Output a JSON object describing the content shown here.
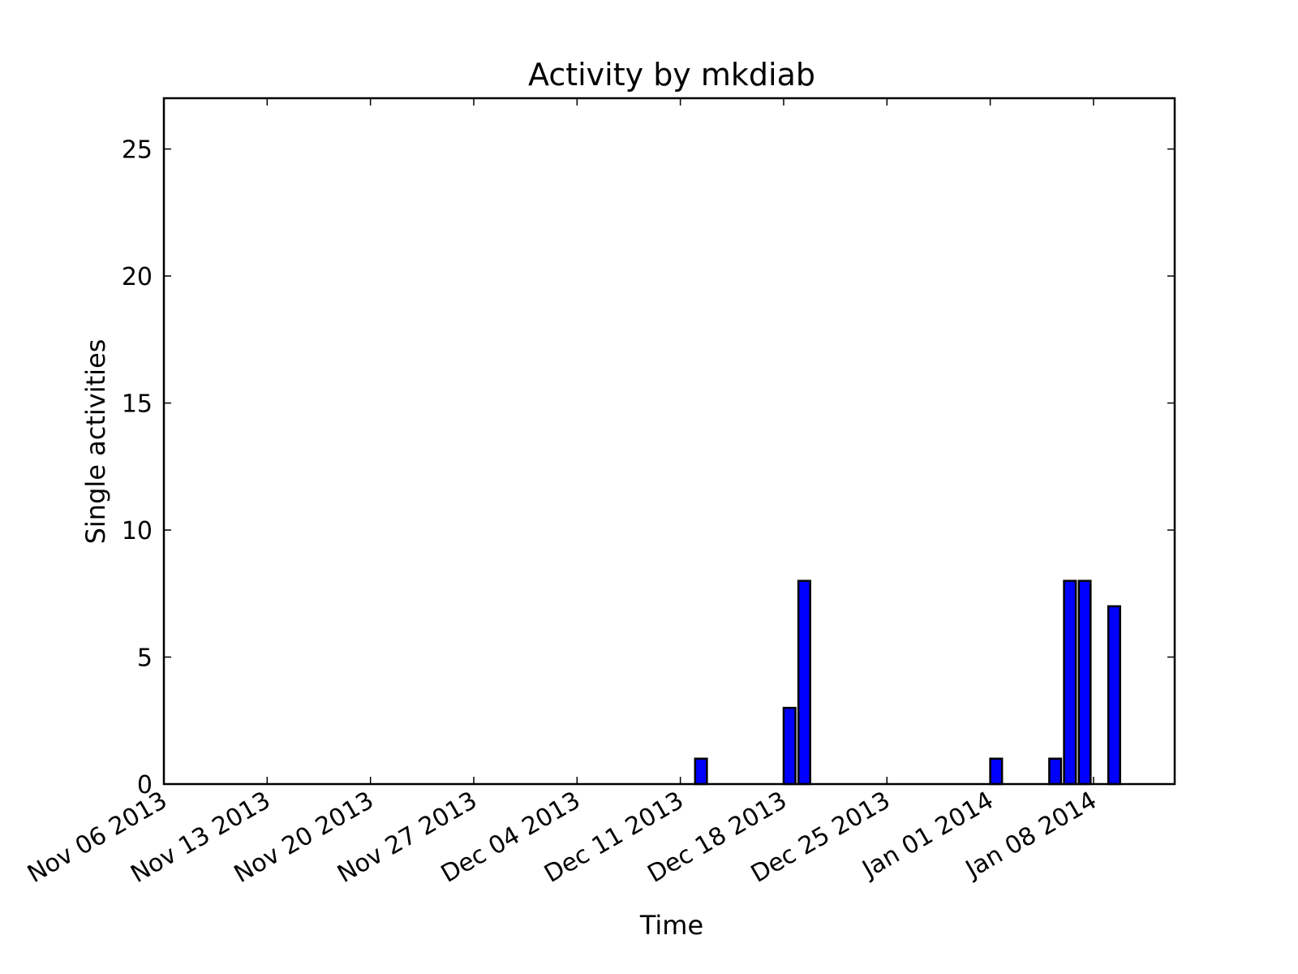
{
  "chart_data": {
    "type": "bar",
    "title": "Activity by mkdiab",
    "xlabel": "Time",
    "ylabel": "Single activities",
    "x_ticks": [
      "Nov 06 2013",
      "Nov 13 2013",
      "Nov 20 2013",
      "Nov 27 2013",
      "Dec 04 2013",
      "Dec 11 2013",
      "Dec 18 2013",
      "Dec 25 2013",
      "Jan 01 2014",
      "Jan 08 2014"
    ],
    "x_tick_dates": [
      "2013-11-06",
      "2013-11-13",
      "2013-11-20",
      "2013-11-27",
      "2013-12-04",
      "2013-12-11",
      "2013-12-18",
      "2013-12-25",
      "2014-01-01",
      "2014-01-08"
    ],
    "y_ticks": [
      0,
      5,
      10,
      15,
      20,
      25
    ],
    "xlim": [
      "2013-11-06",
      "2014-01-13"
    ],
    "ylim": [
      0,
      27
    ],
    "grid": false,
    "bars": [
      {
        "date": "2013-12-12",
        "value": 1
      },
      {
        "date": "2013-12-18",
        "value": 3
      },
      {
        "date": "2013-12-19",
        "value": 8
      },
      {
        "date": "2014-01-01",
        "value": 1
      },
      {
        "date": "2014-01-05",
        "value": 1
      },
      {
        "date": "2014-01-06",
        "value": 8
      },
      {
        "date": "2014-01-07",
        "value": 8
      },
      {
        "date": "2014-01-09",
        "value": 7
      }
    ],
    "colors": {
      "bar": "#0000ff",
      "edge": "#000000"
    }
  }
}
